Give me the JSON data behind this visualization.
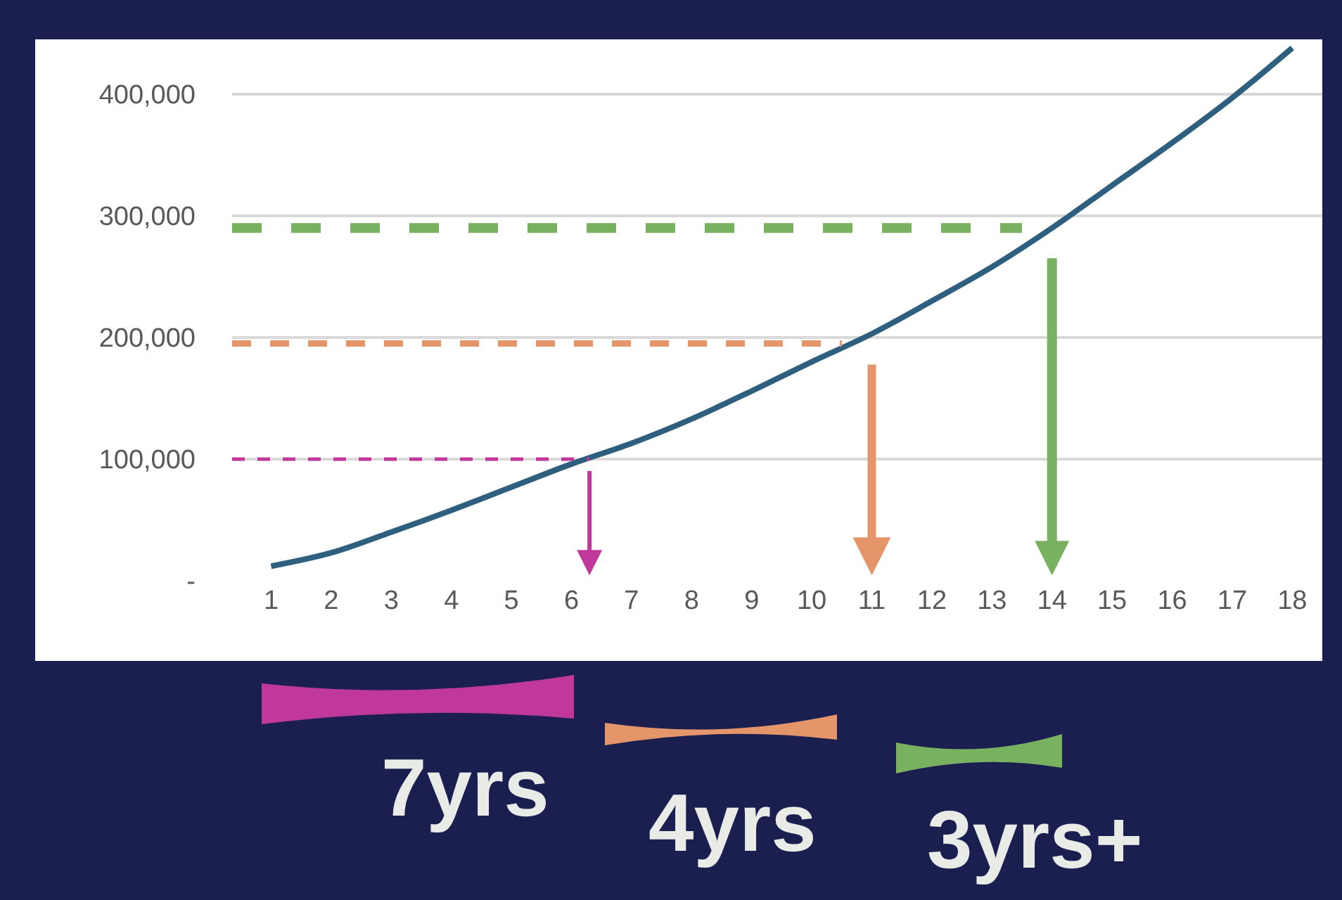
{
  "chart_data": {
    "type": "line",
    "x": [
      1,
      2,
      3,
      4,
      5,
      6,
      7,
      8,
      9,
      10,
      11,
      12,
      13,
      14,
      15,
      16,
      17,
      18
    ],
    "series": [
      {
        "color": "#2e5f7f",
        "values": [
          12000,
          23000,
          40000,
          58000,
          77000,
          96000,
          113000,
          133000,
          156000,
          180000,
          203000,
          230000,
          258000,
          290000,
          325000,
          360000,
          397000,
          438000
        ]
      },
      {
        "color": "#c0399a",
        "x": [
          0.35,
          6.3
        ],
        "values": [
          100000,
          100000
        ],
        "line_style": "dashed"
      },
      {
        "color": "#e5956a",
        "x": [
          0.35,
          10.5
        ],
        "values": [
          195000,
          195000
        ],
        "line_style": "dashed"
      },
      {
        "color": "#78b15f",
        "x": [
          0.35,
          13.5
        ],
        "values": [
          290000,
          290000
        ],
        "line_style": "dashed"
      }
    ],
    "xlim": [
      0.35,
      18.5
    ],
    "xticks": [
      1,
      2,
      3,
      4,
      5,
      6,
      7,
      8,
      9,
      10,
      11,
      12,
      13,
      14,
      15,
      16,
      17,
      18
    ],
    "ylim": [
      0,
      445000
    ],
    "yticks": [
      {
        "value": 0,
        "label": "-"
      },
      {
        "value": 100000,
        "label": "100,000"
      },
      {
        "value": 200000,
        "label": "200,000"
      },
      {
        "value": 300000,
        "label": "300,000"
      },
      {
        "value": 400000,
        "label": "400,000"
      }
    ],
    "grid": "y",
    "legend": false,
    "marker": "none",
    "annotations": [
      "7yrs",
      "4yrs",
      "3yrs+"
    ]
  }
}
